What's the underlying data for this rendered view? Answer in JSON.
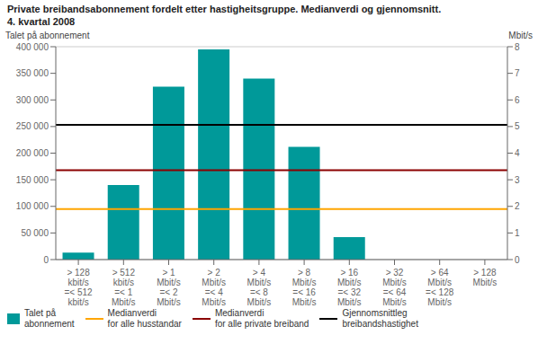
{
  "chart_data": {
    "type": "bar",
    "title": "Private breibandsabonnement fordelt etter hastigheitsgruppe. Medianverdi og gjennomsnitt.",
    "subtitle": "4. kvartal 2008",
    "ylabel": "Talet på abonnement",
    "y2label": "Mbit/s",
    "categories": [
      "> 128\nkbit/s\n=< 512\nkbit/s",
      "> 512\nkbit/s\n=< 1\nMbit/s",
      "> 1\nMbit/s\n=< 2\nMbit/s",
      "> 2\nMbit/s\n=< 4\nMbit/s",
      "> 4\nMbit/s\n=< 8\nMbit/s",
      "> 8\nMbit/s\n=< 16\nMbit/s",
      "> 16\nMbit/s\n=< 32\nMbit/s",
      "> 32\nMbit/s\n=< 64\nMbit/s",
      "> 64\nMbit/s\n=< 128\nMbit/s",
      "> 128\nMbit/s"
    ],
    "series": [
      {
        "name": "Talet på\nabonnement",
        "color": "#009999",
        "values": [
          13000,
          140000,
          325000,
          395000,
          340000,
          212000,
          42000,
          0,
          0,
          0
        ]
      }
    ],
    "reference_lines": [
      {
        "name": "Medianverdi\nfor alle husstandar",
        "color": "#FFA500",
        "value": 95000
      },
      {
        "name": "Medianverdi\nfor alle private breiband",
        "color": "#8B0000",
        "value": 168000
      },
      {
        "name": "Gjennomsnittleg\nbreibandshastighet",
        "color": "#000000",
        "value": 253000
      }
    ],
    "ylim": [
      0,
      400000
    ],
    "yticks": [
      0,
      {
        "value": 50000,
        "label": "50 000"
      },
      {
        "value": 100000,
        "label": "100 000"
      },
      {
        "value": 150000,
        "label": "150 000"
      },
      {
        "value": 200000,
        "label": "200 000"
      },
      {
        "value": 250000,
        "label": "250 000"
      },
      {
        "value": 300000,
        "label": "300 000"
      },
      {
        "value": 350000,
        "label": "350 000"
      },
      {
        "value": 400000,
        "label": "400 000"
      }
    ],
    "y2lim": [
      0,
      8
    ],
    "y2ticks": [
      0,
      1,
      2,
      3,
      4,
      5,
      6,
      7,
      8
    ],
    "grid": true,
    "legend": "lower left"
  }
}
